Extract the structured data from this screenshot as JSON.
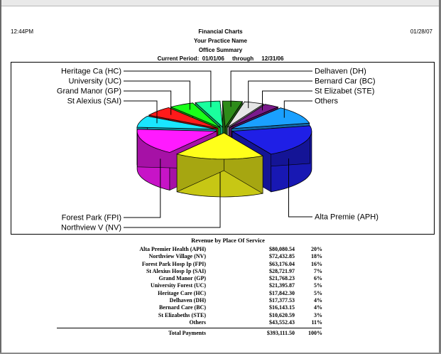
{
  "report": {
    "time": "12:44PM",
    "date": "01/28/07",
    "title": "Financial Charts",
    "practice": "Your Practice Name",
    "subtitle": "Office Summary",
    "period_label": "Current Period:",
    "period_start": "01/01/06",
    "through_label": "through",
    "period_end": "12/31/06"
  },
  "chart_data": {
    "type": "pie",
    "style": "3d-exploded",
    "slices": [
      {
        "label": "Alta Premie (APH)",
        "value": 20,
        "color": "#1f1fe6"
      },
      {
        "label": "Northview V (NV)",
        "value": 18,
        "color": "#ffff1a"
      },
      {
        "label": "Forest Park (FPI)",
        "value": 16,
        "color": "#ff1aff"
      },
      {
        "label": "St Alexius  (SAI)",
        "value": 7,
        "color": "#1ae6ff"
      },
      {
        "label": "Grand Manor (GP)",
        "value": 6,
        "color": "#ff1a1a"
      },
      {
        "label": "University  (UC)",
        "value": 5,
        "color": "#1aff1a"
      },
      {
        "label": "Heritage Ca (HC)",
        "value": 5,
        "color": "#1aff9e"
      },
      {
        "label": "Delhaven (DH)",
        "value": 4,
        "color": "#2e8c1a"
      },
      {
        "label": "Bernard Car (BC)",
        "value": 4,
        "color": "#e6e6e6"
      },
      {
        "label": "St Elizabet (STE)",
        "value": 3,
        "color": "#7a1a8c"
      },
      {
        "label": "Others",
        "value": 11,
        "color": "#1aa0ff"
      }
    ]
  },
  "revenue": {
    "title": "Revenue by Place Of Service",
    "rows": [
      {
        "name": "Alta Premier Health (APH)",
        "amount": "$80,080.54",
        "pct": "20%"
      },
      {
        "name": "Northview Village (NV)",
        "amount": "$72,432.85",
        "pct": "18%"
      },
      {
        "name": "Forest Park Hosp Ip (FPI)",
        "amount": "$63,176.04",
        "pct": "16%"
      },
      {
        "name": "St Alexius Hosp Ip (SAI)",
        "amount": "$28,721.97",
        "pct": "7%"
      },
      {
        "name": "Grand Manor (GP)",
        "amount": "$21,768.23",
        "pct": "6%"
      },
      {
        "name": "University Forest (UC)",
        "amount": "$21,395.87",
        "pct": "5%"
      },
      {
        "name": "Heritage Care (HC)",
        "amount": "$17,842.30",
        "pct": "5%"
      },
      {
        "name": "Delhaven (DH)",
        "amount": "$17,377.53",
        "pct": "4%"
      },
      {
        "name": "Bernard Care (BC)",
        "amount": "$16,143.15",
        "pct": "4%"
      },
      {
        "name": "St Elizabeths (STE)",
        "amount": "$10,620.59",
        "pct": "3%"
      },
      {
        "name": "Others",
        "amount": "$43,552.43",
        "pct": "11%"
      }
    ],
    "total_label": "Total Payments",
    "total_amount": "$393,111.50",
    "total_pct": "100%"
  }
}
